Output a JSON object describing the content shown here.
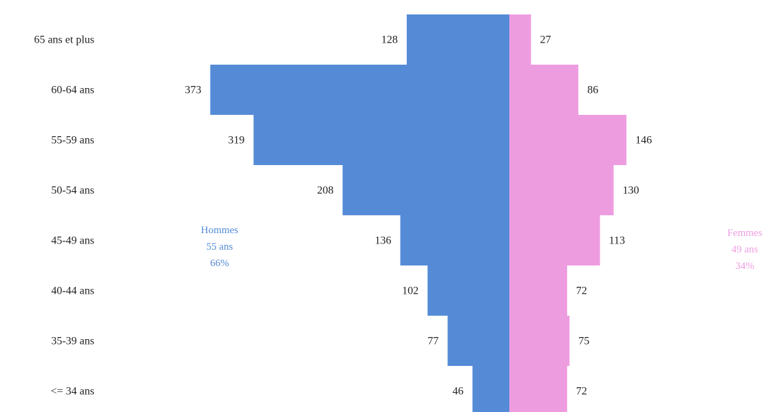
{
  "chart_data": {
    "type": "bar",
    "orientation": "horizontal-pyramid",
    "categories": [
      "65 ans et plus",
      "60-64 ans",
      "55-59 ans",
      "50-54 ans",
      "45-49 ans",
      "40-44 ans",
      "35-39 ans",
      "<= 34 ans"
    ],
    "series": [
      {
        "key": "men",
        "values": [
          128,
          373,
          319,
          208,
          136,
          102,
          77,
          46
        ],
        "color": "#558bd6",
        "side": "left",
        "legend": {
          "name": "Hommes",
          "age": "55 ans",
          "pct": "66%"
        }
      },
      {
        "key": "women",
        "values": [
          27,
          86,
          146,
          130,
          113,
          72,
          75,
          72
        ],
        "color": "#ee9ce0",
        "side": "right",
        "legend": {
          "name": "Femmes",
          "age": "49 ans",
          "pct": "34%"
        }
      }
    ],
    "grid": false
  }
}
